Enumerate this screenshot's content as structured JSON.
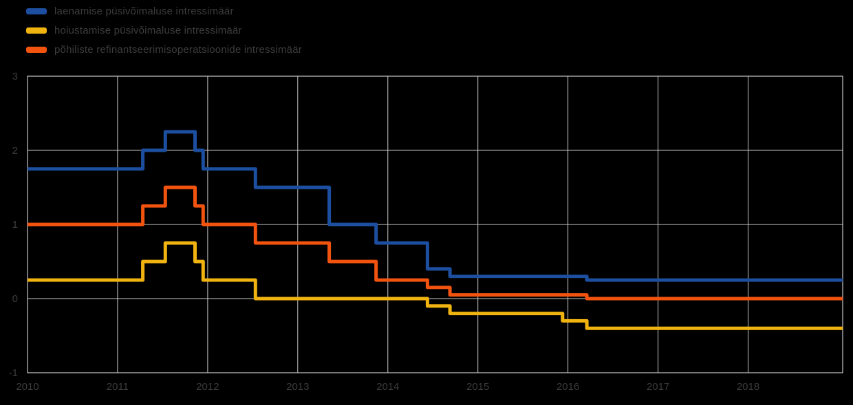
{
  "page": {
    "kind": "interest-rate-step-chart",
    "background": "#000000"
  },
  "legend": {
    "position": "top-left",
    "items": [
      {
        "id": "marginal-lending",
        "label": "laenamise püsivõimaluse intressimäär",
        "color": "#1d4fa1"
      },
      {
        "id": "deposit-facility",
        "label": "hoiustamise püsivõimaluse intressimäär",
        "color": "#f0b310"
      },
      {
        "id": "main-refinancing",
        "label": "põhiliste refinantseerimisoperatsioonide intressimäär",
        "color": "#f2530e"
      }
    ]
  },
  "chart_data": {
    "type": "line",
    "subtype": "step-after",
    "title": "",
    "xlabel": "",
    "ylabel": "",
    "grid": true,
    "grid_color": "#c8c8c8",
    "axis_text_color": "#3c3c3c",
    "legend_position": "top-left",
    "xlim": [
      2010,
      2019.05
    ],
    "ylim": [
      -1,
      3
    ],
    "x_ticks": [
      2010,
      2011,
      2012,
      2013,
      2014,
      2015,
      2016,
      2017,
      2018
    ],
    "x_tick_labels": [
      "2010",
      "2011",
      "2012",
      "2013",
      "2014",
      "2015",
      "2016",
      "2017",
      "2018"
    ],
    "y_ticks": [
      3,
      2,
      1,
      0,
      -1
    ],
    "y_tick_labels": [
      "3",
      "2",
      "1",
      "0",
      "-1"
    ],
    "line_width": 5,
    "series": [
      {
        "id": "marginal-lending-facility-rate",
        "name": "laenamise püsivõimaluse intressimäär",
        "color": "#1d4fa1",
        "unit": "%",
        "points": [
          [
            2010.0,
            1.75
          ],
          [
            2011.28,
            2.0
          ],
          [
            2011.53,
            2.25
          ],
          [
            2011.86,
            2.0
          ],
          [
            2011.95,
            1.75
          ],
          [
            2012.53,
            1.5
          ],
          [
            2013.35,
            1.0
          ],
          [
            2013.87,
            0.75
          ],
          [
            2014.44,
            0.4
          ],
          [
            2014.69,
            0.3
          ],
          [
            2016.21,
            0.25
          ]
        ]
      },
      {
        "id": "deposit-facility-rate",
        "name": "hoiustamise püsivõimaluse intressimäär",
        "color": "#f0b310",
        "unit": "%",
        "points": [
          [
            2010.0,
            0.25
          ],
          [
            2011.28,
            0.5
          ],
          [
            2011.53,
            0.75
          ],
          [
            2011.86,
            0.5
          ],
          [
            2011.95,
            0.25
          ],
          [
            2012.53,
            0.0
          ],
          [
            2014.44,
            -0.1
          ],
          [
            2014.69,
            -0.2
          ],
          [
            2015.94,
            -0.3
          ],
          [
            2016.21,
            -0.4
          ]
        ]
      },
      {
        "id": "main-refinancing-operations-rate",
        "name": "põhiliste refinantseerimisoperatsioonide intressimäär",
        "color": "#f2530e",
        "unit": "%",
        "points": [
          [
            2010.0,
            1.0
          ],
          [
            2011.28,
            1.25
          ],
          [
            2011.53,
            1.5
          ],
          [
            2011.86,
            1.25
          ],
          [
            2011.95,
            1.0
          ],
          [
            2012.53,
            0.75
          ],
          [
            2013.35,
            0.5
          ],
          [
            2013.87,
            0.25
          ],
          [
            2014.44,
            0.15
          ],
          [
            2014.69,
            0.05
          ],
          [
            2016.21,
            0.0
          ]
        ]
      }
    ]
  }
}
